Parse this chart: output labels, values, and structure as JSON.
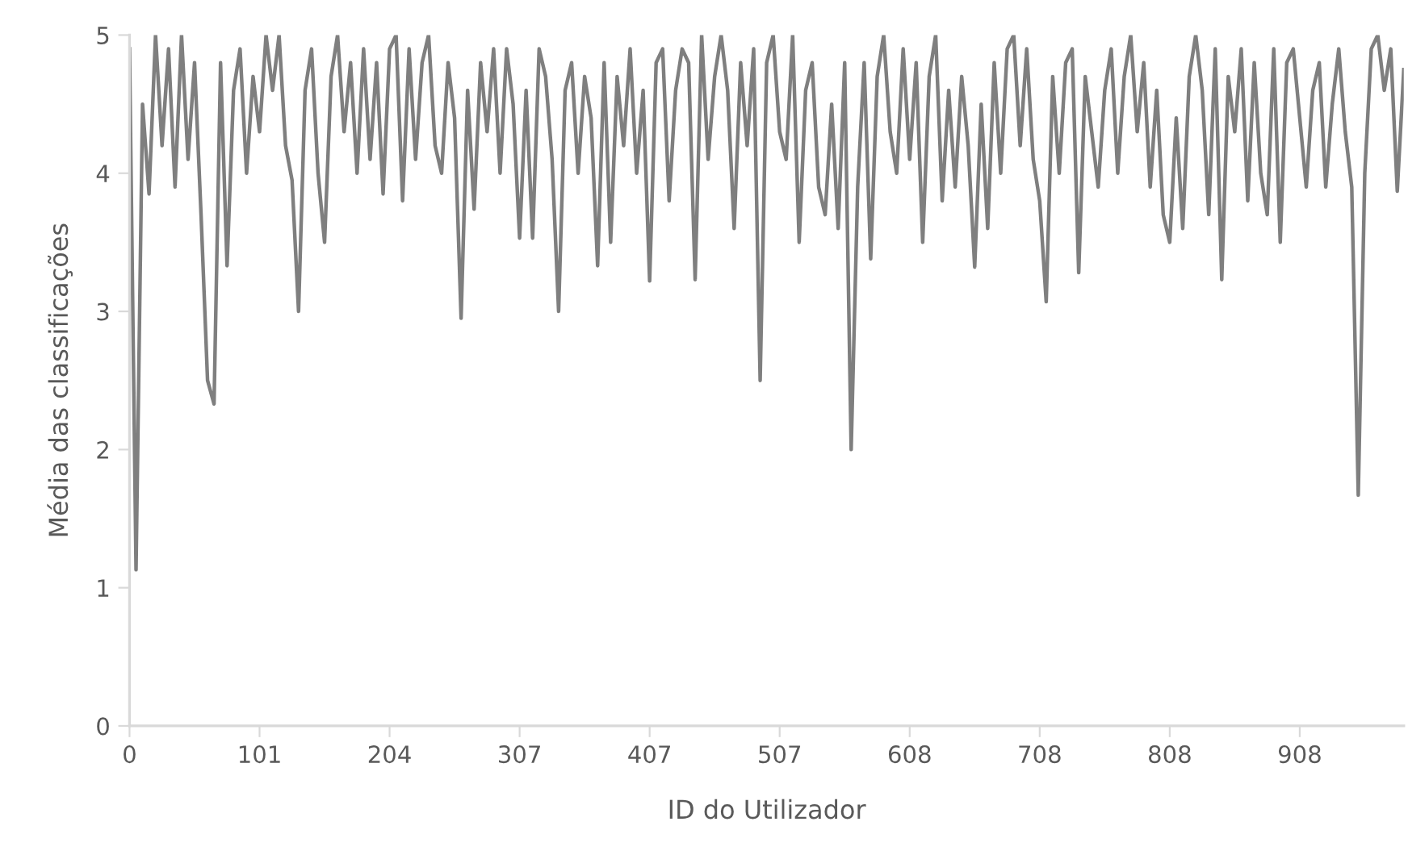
{
  "chart_data": {
    "type": "line",
    "xlabel": "ID do Utilizador",
    "ylabel": "Média das classificações",
    "categories": [
      "0",
      null,
      null,
      null,
      null,
      null,
      null,
      null,
      null,
      null,
      null,
      null,
      null,
      null,
      null,
      null,
      null,
      null,
      null,
      null,
      "101",
      null,
      null,
      null,
      null,
      null,
      null,
      null,
      null,
      null,
      null,
      null,
      null,
      null,
      null,
      null,
      null,
      null,
      null,
      null,
      "204",
      null,
      null,
      null,
      null,
      null,
      null,
      null,
      null,
      null,
      null,
      null,
      null,
      null,
      null,
      null,
      null,
      null,
      null,
      null,
      "307",
      null,
      null,
      null,
      null,
      null,
      null,
      null,
      null,
      null,
      null,
      null,
      null,
      null,
      null,
      null,
      null,
      null,
      null,
      null,
      "407",
      null,
      null,
      null,
      null,
      null,
      null,
      null,
      null,
      null,
      null,
      null,
      null,
      null,
      null,
      null,
      null,
      null,
      null,
      null,
      "507",
      null,
      null,
      null,
      null,
      null,
      null,
      null,
      null,
      null,
      null,
      null,
      null,
      null,
      null,
      null,
      null,
      null,
      null,
      null,
      "608",
      null,
      null,
      null,
      null,
      null,
      null,
      null,
      null,
      null,
      null,
      null,
      null,
      null,
      null,
      null,
      null,
      null,
      null,
      null,
      "708",
      null,
      null,
      null,
      null,
      null,
      null,
      null,
      null,
      null,
      null,
      null,
      null,
      null,
      null,
      null,
      null,
      null,
      null,
      null,
      "808",
      null,
      null,
      null,
      null,
      null,
      null,
      null,
      null,
      null,
      null,
      null,
      null,
      null,
      null,
      null,
      null,
      null,
      null,
      null,
      "908",
      null,
      null,
      null,
      null,
      null,
      null,
      null,
      null,
      null,
      null,
      null,
      null,
      null,
      null,
      null,
      null
    ],
    "ylim": [
      0,
      5
    ],
    "yticks": [
      0,
      1,
      2,
      3,
      4,
      5
    ],
    "grid": false,
    "marker": "none",
    "line_style": "solid",
    "series": [
      {
        "color": "#7f7f7f",
        "values": [
          4.9,
          1.13,
          4.5,
          3.85,
          5.0,
          4.2,
          4.9,
          3.9,
          5.0,
          4.1,
          4.8,
          3.7,
          2.5,
          2.33,
          4.8,
          3.33,
          4.6,
          4.9,
          4.0,
          4.7,
          4.3,
          5.0,
          4.6,
          5.0,
          4.2,
          3.95,
          3.0,
          4.6,
          4.9,
          4.0,
          3.5,
          4.7,
          5.0,
          4.3,
          4.8,
          4.0,
          4.9,
          4.1,
          4.8,
          3.85,
          4.9,
          5.0,
          3.8,
          4.9,
          4.1,
          4.8,
          5.0,
          4.2,
          4.0,
          4.8,
          4.4,
          2.95,
          4.6,
          3.74,
          4.8,
          4.3,
          4.9,
          4.0,
          4.9,
          4.5,
          3.53,
          4.6,
          3.53,
          4.9,
          4.7,
          4.1,
          3.0,
          4.6,
          4.8,
          4.0,
          4.7,
          4.4,
          3.33,
          4.8,
          3.5,
          4.7,
          4.2,
          4.9,
          4.0,
          4.6,
          3.22,
          4.8,
          4.9,
          3.8,
          4.6,
          4.9,
          4.8,
          3.23,
          5.0,
          4.1,
          4.7,
          5.0,
          4.6,
          3.6,
          4.8,
          4.2,
          4.9,
          2.5,
          4.8,
          5.0,
          4.3,
          4.1,
          5.0,
          3.5,
          4.6,
          4.8,
          3.9,
          3.7,
          4.5,
          3.6,
          4.8,
          2.0,
          3.9,
          4.8,
          3.38,
          4.7,
          5.0,
          4.3,
          4.0,
          4.9,
          4.1,
          4.8,
          3.5,
          4.7,
          5.0,
          3.8,
          4.6,
          3.9,
          4.7,
          4.2,
          3.32,
          4.5,
          3.6,
          4.8,
          4.0,
          4.9,
          5.0,
          4.2,
          4.9,
          4.1,
          3.8,
          3.07,
          4.7,
          4.0,
          4.8,
          4.9,
          3.28,
          4.7,
          4.3,
          3.9,
          4.6,
          4.9,
          4.0,
          4.7,
          5.0,
          4.3,
          4.8,
          3.9,
          4.6,
          3.7,
          3.5,
          4.4,
          3.6,
          4.7,
          5.0,
          4.6,
          3.7,
          4.9,
          3.23,
          4.7,
          4.3,
          4.9,
          3.8,
          4.8,
          4.0,
          3.7,
          4.9,
          3.5,
          4.8,
          4.9,
          4.4,
          3.9,
          4.6,
          4.8,
          3.9,
          4.5,
          4.9,
          4.3,
          3.9,
          1.67,
          4.0,
          4.9,
          5.0,
          4.6,
          4.9,
          3.87,
          4.75
        ]
      }
    ]
  }
}
